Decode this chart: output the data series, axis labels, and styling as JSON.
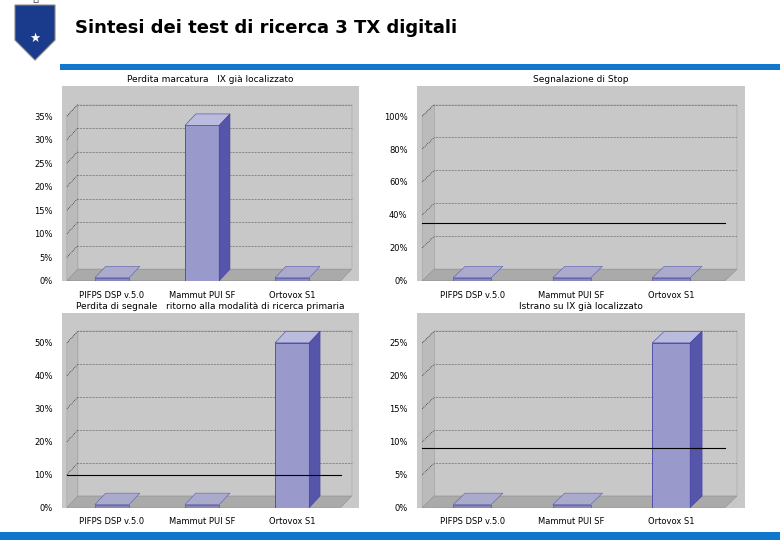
{
  "title": "Sintesi dei test di ricerca 3 TX digitali",
  "charts": [
    {
      "subtitle": "Perdita marcatura   IX già localizzato",
      "categories": [
        "PIFPS DSP v.5.0",
        "Mammut PUI SF",
        "Ortovox S1"
      ],
      "values": [
        0,
        33,
        0
      ],
      "yticks": [
        0,
        5,
        10,
        15,
        20,
        25,
        30,
        35
      ],
      "ymax": 35,
      "hline": null
    },
    {
      "subtitle": "Segnalazione di Stop",
      "categories": [
        "PIFPS DSP v.5.0",
        "Mammut PUI SF",
        "Ortovox S1"
      ],
      "values": [
        0,
        0,
        0
      ],
      "yticks": [
        0,
        20,
        40,
        60,
        80,
        100
      ],
      "ymax": 100,
      "hline": 35
    },
    {
      "subtitle": "Perdita di segnale   ritorno alla modalità di ricerca primaria",
      "categories": [
        "PIFPS DSP v.5.0",
        "Mammut PUI SF",
        "Ortovox S1"
      ],
      "values": [
        0,
        0,
        50
      ],
      "yticks": [
        0,
        10,
        20,
        30,
        40,
        50
      ],
      "ymax": 50,
      "hline": 10
    },
    {
      "subtitle": "Istrano su IX già localizzato",
      "categories": [
        "PIFPS DSP v.5.0",
        "Mammut PUI SF",
        "Ortovox S1"
      ],
      "values": [
        0,
        0,
        25
      ],
      "yticks": [
        0,
        5,
        10,
        15,
        20,
        25
      ],
      "ymax": 25,
      "hline": 9
    }
  ],
  "bar_face_color": "#9999cc",
  "bar_top_color": "#bbbbdd",
  "bar_right_color": "#5555aa",
  "bar_edge_color": "#4444aa",
  "platform_face": "#8888bb",
  "platform_top": "#aaaacc",
  "backwall_color": "#c8c8c8",
  "floor_color": "#aaaaaa",
  "plot_bg": "#c8c8c8",
  "content_bg": "#e0e0e0",
  "header_bg": "#ffffff",
  "title_color": "#000000",
  "stripe_color": "#1177cc",
  "logo_shield_color": "#1a3a8c",
  "logo_shield_edge": "#888888"
}
